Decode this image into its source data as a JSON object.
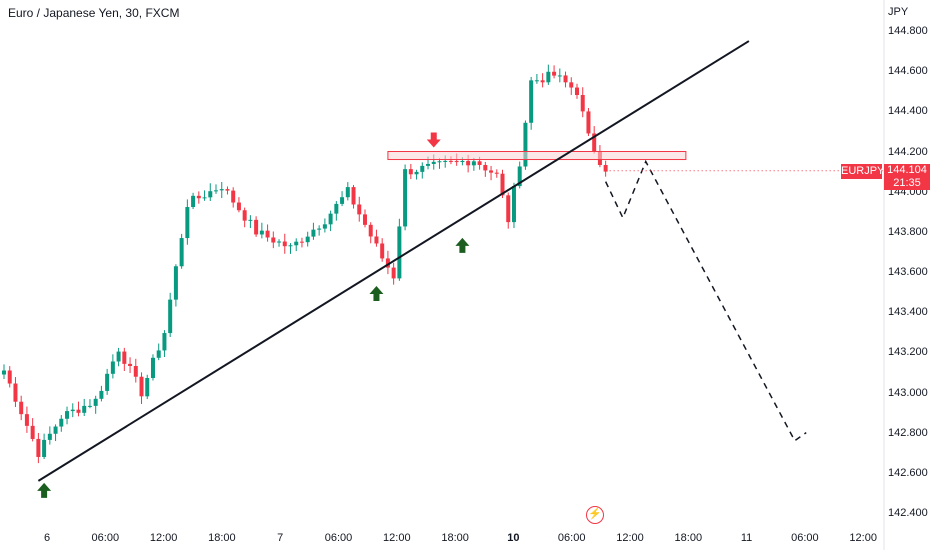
{
  "header": {
    "title": "Euro / Japanese Yen, 30, FXCM",
    "currency": "JPY"
  },
  "last_price": {
    "symbol": "EURJPY",
    "price": "144.104",
    "countdown": "21:35"
  },
  "colors": {
    "up": "#089981",
    "down": "#f23645",
    "zone_border": "#f23645",
    "zone_fill": "#f9d3d6",
    "trendline": "#131722",
    "arrow_up": "#1b5e20",
    "arrow_down": "#f23645"
  },
  "icons": {
    "tv_logo": "lightning-icon"
  },
  "chart_data": {
    "type": "candlestick",
    "timeframe": "30",
    "ylim": [
      142.4,
      144.8
    ],
    "y_ticks": [
      "144.800",
      "144.600",
      "144.400",
      "144.200",
      "144.000",
      "143.800",
      "143.600",
      "143.400",
      "143.200",
      "143.000",
      "142.800",
      "142.600",
      "142.400"
    ],
    "x_ticks": [
      {
        "label": "6",
        "bold": false
      },
      {
        "label": "06:00",
        "bold": false
      },
      {
        "label": "12:00",
        "bold": false
      },
      {
        "label": "18:00",
        "bold": false
      },
      {
        "label": "7",
        "bold": false
      },
      {
        "label": "06:00",
        "bold": false
      },
      {
        "label": "12:00",
        "bold": false
      },
      {
        "label": "18:00",
        "bold": false
      },
      {
        "label": "10",
        "bold": true
      },
      {
        "label": "06:00",
        "bold": false
      },
      {
        "label": "12:00",
        "bold": false
      },
      {
        "label": "18:00",
        "bold": false
      },
      {
        "label": "11",
        "bold": false
      },
      {
        "label": "06:00",
        "bold": false
      },
      {
        "label": "12:00",
        "bold": false
      }
    ],
    "anchors": [
      {
        "bar": 0,
        "price": 143.11
      },
      {
        "bar": 6,
        "price": 142.7
      },
      {
        "bar": 10,
        "price": 142.88
      },
      {
        "bar": 16,
        "price": 142.96
      },
      {
        "bar": 20,
        "price": 143.22
      },
      {
        "bar": 24,
        "price": 143.0
      },
      {
        "bar": 28,
        "price": 143.3
      },
      {
        "bar": 32,
        "price": 143.94
      },
      {
        "bar": 38,
        "price": 144.03
      },
      {
        "bar": 44,
        "price": 143.8
      },
      {
        "bar": 50,
        "price": 143.72
      },
      {
        "bar": 56,
        "price": 143.86
      },
      {
        "bar": 60,
        "price": 144.0
      },
      {
        "bar": 66,
        "price": 143.67
      },
      {
        "bar": 68,
        "price": 143.58
      },
      {
        "bar": 70,
        "price": 144.1
      },
      {
        "bar": 76,
        "price": 144.13
      },
      {
        "bar": 82,
        "price": 144.16
      },
      {
        "bar": 86,
        "price": 144.08
      },
      {
        "bar": 88,
        "price": 143.86
      },
      {
        "bar": 90,
        "price": 144.15
      },
      {
        "bar": 92,
        "price": 144.55
      },
      {
        "bar": 96,
        "price": 144.58
      },
      {
        "bar": 100,
        "price": 144.5
      },
      {
        "bar": 102,
        "price": 144.27
      },
      {
        "bar": 105,
        "price": 144.1
      }
    ],
    "trendline": {
      "from": {
        "bar": 6,
        "price": 142.56
      },
      "to": {
        "bar": 130,
        "price": 144.75
      }
    },
    "resistance_zone": {
      "from_bar": 67,
      "to_bar": 119,
      "low": 144.16,
      "high": 144.2
    },
    "projection": [
      {
        "bar": 105,
        "price": 144.05
      },
      {
        "bar": 108,
        "price": 143.87
      },
      {
        "bar": 112,
        "price": 144.15
      },
      {
        "bar": 138,
        "price": 142.76
      },
      {
        "bar": 140,
        "price": 142.8
      }
    ],
    "markers": [
      {
        "type": "up",
        "bar": 7,
        "price": 142.55
      },
      {
        "type": "up",
        "bar": 65,
        "price": 143.53
      },
      {
        "type": "up",
        "bar": 80,
        "price": 143.77
      },
      {
        "type": "down",
        "bar": 75,
        "price": 144.22
      }
    ]
  }
}
